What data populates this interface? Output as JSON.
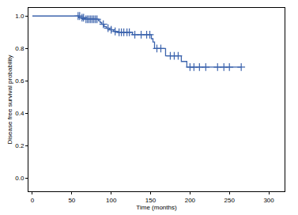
{
  "chart_data": {
    "type": "line",
    "x_label": "Time (months)",
    "y_label": "Disease free survival probability",
    "xlim": [
      -5,
      320
    ],
    "xticks": [
      0,
      50,
      100,
      150,
      200,
      250,
      300
    ],
    "ylim": [
      -0.08,
      1.05
    ],
    "yticks": [
      {
        "value": 0,
        "label": "0.0"
      },
      0.2,
      0.4,
      0.6,
      0.8,
      {
        "value": 1,
        "label": "1.0"
      }
    ],
    "grid": false,
    "series": [
      {
        "type": "line",
        "line_style": "step",
        "color": "#3d64ad",
        "x": [
          0,
          59,
          62,
          67,
          84,
          86,
          88,
          91,
          94,
          98,
          103,
          108,
          127,
          151,
          153,
          155,
          169,
          189,
          196,
          265
        ],
        "values": [
          1.0,
          0.99,
          0.985,
          0.98,
          0.97,
          0.96,
          0.95,
          0.935,
          0.925,
          0.915,
          0.905,
          0.9,
          0.885,
          0.86,
          0.84,
          0.8,
          0.755,
          0.72,
          0.685,
          0.685
        ]
      },
      {
        "type": "scatter",
        "marker": "cross",
        "color": "#3d64ad",
        "x": [
          58,
          60,
          63,
          65,
          68,
          70,
          72,
          74,
          76,
          78,
          80,
          82,
          90,
          96,
          100,
          105,
          110,
          113,
          116,
          120,
          123,
          130,
          138,
          145,
          149,
          158,
          163,
          175,
          180,
          185,
          200,
          205,
          212,
          220,
          235,
          243,
          250,
          265
        ],
        "values": [
          1.0,
          1.0,
          0.99,
          0.99,
          0.98,
          0.98,
          0.98,
          0.98,
          0.98,
          0.98,
          0.98,
          0.98,
          0.95,
          0.925,
          0.915,
          0.905,
          0.9,
          0.9,
          0.9,
          0.9,
          0.9,
          0.885,
          0.885,
          0.885,
          0.885,
          0.8,
          0.8,
          0.755,
          0.755,
          0.755,
          0.685,
          0.685,
          0.685,
          0.685,
          0.685,
          0.685,
          0.685,
          0.685
        ]
      }
    ]
  }
}
